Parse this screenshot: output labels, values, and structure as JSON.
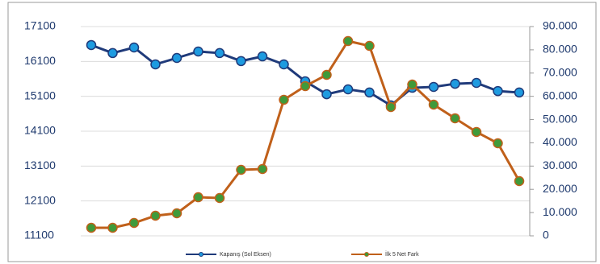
{
  "chart_data": {
    "type": "line",
    "categories": [
      null,
      null,
      null,
      null,
      null,
      null,
      null,
      null,
      null,
      null,
      null,
      null,
      null,
      null,
      null,
      null,
      null,
      null,
      null,
      null,
      null
    ],
    "series": [
      {
        "name": "Kapanış (Sol Eksen)",
        "color": "#1f3a7a",
        "marker_color": "#1e9be0",
        "axis": "y",
        "values": [
          16570,
          16340,
          16500,
          16015,
          16200,
          16385,
          16340,
          16110,
          16245,
          16015,
          15530,
          15160,
          15300,
          15210,
          14840,
          15345,
          15370,
          15460,
          15485,
          15250,
          15210
        ]
      },
      {
        "name": "İlk 5 Net Fark",
        "color": "#c0601a",
        "marker_color": "#3f9a3a",
        "axis": "y2",
        "values": [
          3460,
          3460,
          5540,
          8650,
          9690,
          16600,
          16270,
          28380,
          28730,
          58500,
          64380,
          69230,
          83770,
          81690,
          55380,
          65070,
          56420,
          50540,
          44650,
          39810,
          23540
        ]
      }
    ],
    "ylim": [
      11100,
      17100
    ],
    "yticks": [
      11100,
      12100,
      13100,
      14100,
      15100,
      16100,
      17100
    ],
    "y2lim": [
      0,
      90000
    ],
    "y2ticks": [
      0,
      {
        "value": 10000,
        "label": "10.000"
      },
      {
        "value": 20000,
        "label": "20.000"
      },
      {
        "value": 30000,
        "label": "30.000"
      },
      {
        "value": 40000,
        "label": "40.000"
      },
      {
        "value": 50000,
        "label": "50.000"
      },
      {
        "value": 60000,
        "label": "60.000"
      },
      {
        "value": 70000,
        "label": "70.000"
      },
      {
        "value": 80000,
        "label": "80.000"
      },
      {
        "value": 90000,
        "label": "90.000"
      }
    ],
    "grid": true
  }
}
